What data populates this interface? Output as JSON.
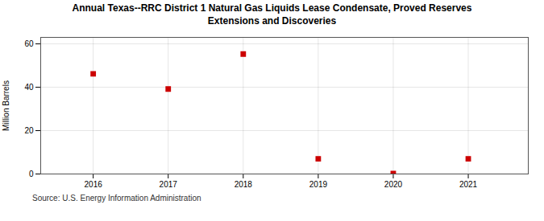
{
  "chart_data": {
    "type": "scatter",
    "title": "Annual Texas--RRC District 1 Natural Gas Liquids Lease Condensate, Proved Reserves\nExtensions and Discoveries",
    "x": [
      2016,
      2017,
      2018,
      2019,
      2020,
      2021
    ],
    "values": [
      46.2,
      39.2,
      55.3,
      7.0,
      0.2,
      7.0
    ],
    "ylabel": "Million Barrels",
    "xlim": [
      2015.3,
      2021.8
    ],
    "xticks": [
      2016,
      2017,
      2018,
      2019,
      2020,
      2021
    ],
    "ylim": [
      0,
      63
    ],
    "yticks": [
      0,
      20,
      40,
      60
    ],
    "color": "#cc0000",
    "marker": "square",
    "grid": true,
    "caption": "Source: U.S. Energy Information Administration"
  }
}
